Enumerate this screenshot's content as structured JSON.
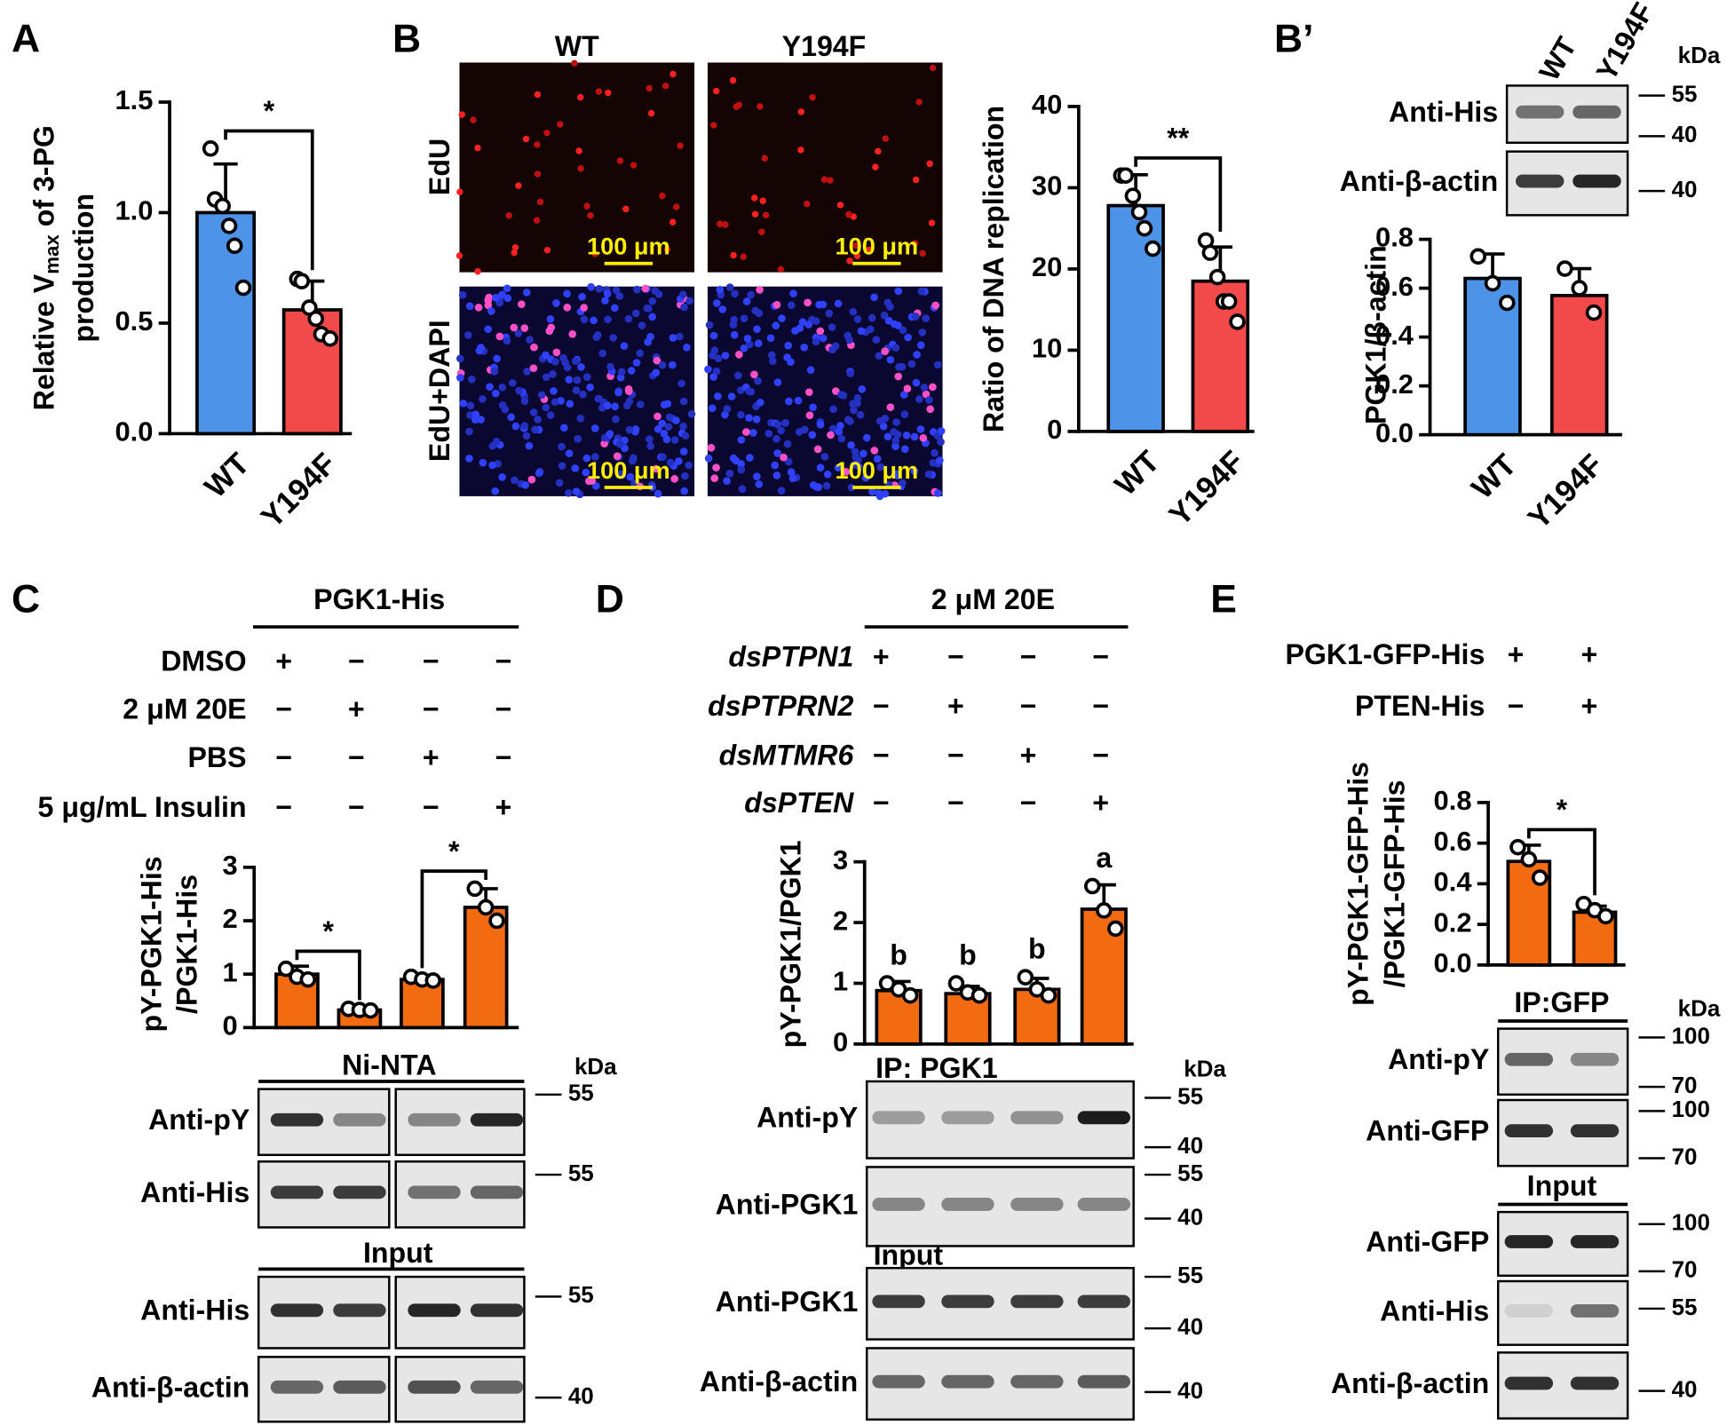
{
  "panel_labels": [
    "A",
    "B",
    "B’",
    "C",
    "D",
    "E"
  ],
  "chart_data": [
    {
      "type": "bar",
      "ylabel": [
        [
          {
            "t": "Relative V"
          },
          {
            "t": "max",
            "sub": true
          },
          {
            "t": " of 3-PG"
          }
        ],
        [
          {
            "t": "production"
          }
        ]
      ],
      "categories": [
        "WT",
        "Y194F"
      ],
      "values": [
        1.0,
        0.56
      ],
      "errors": [
        0.22,
        0.13
      ],
      "colors": [
        "#4d94e8",
        "#f24a4a"
      ],
      "points": [
        [
          1.29,
          1.06,
          1.03,
          0.94,
          0.85,
          0.66
        ],
        [
          0.7,
          0.69,
          0.57,
          0.52,
          0.45,
          0.43
        ]
      ],
      "ylim": [
        0,
        1.5
      ],
      "yticks": [
        {
          "value": 0,
          "label": "0.0"
        },
        {
          "value": 0.5,
          "label": "0.5"
        },
        {
          "value": 1,
          "label": "1.0"
        },
        {
          "value": 1.5,
          "label": "1.5"
        }
      ],
      "significance": [
        {
          "pair": [
            0,
            1
          ],
          "label": "*"
        }
      ]
    },
    {
      "type": "bar",
      "ylabel": [
        [
          {
            "t": "Ratio of DNA replication"
          }
        ]
      ],
      "categories": [
        "WT",
        "Y194F"
      ],
      "values": [
        27.8,
        18.5
      ],
      "errors": [
        3.8,
        4.2
      ],
      "colors": [
        "#4d94e8",
        "#f24a4a"
      ],
      "points": [
        [
          31.5,
          31.5,
          29,
          27,
          25,
          22.5
        ],
        [
          23.5,
          22,
          19,
          16,
          16,
          13.5
        ]
      ],
      "ylim": [
        0,
        40
      ],
      "yticks": [
        0,
        10,
        20,
        30,
        40
      ],
      "significance": [
        {
          "pair": [
            0,
            1
          ],
          "label": "**"
        }
      ]
    },
    {
      "type": "bar",
      "ylabel": [
        [
          {
            "t": "PGK1/β-actin"
          }
        ]
      ],
      "categories": [
        "WT",
        "Y194F"
      ],
      "values": [
        0.64,
        0.57
      ],
      "errors": [
        0.1,
        0.11
      ],
      "colors": [
        "#4d94e8",
        "#f24a4a"
      ],
      "points": [
        [
          0.73,
          0.62,
          0.54
        ],
        [
          0.68,
          0.6,
          0.5
        ]
      ],
      "ylim": [
        0,
        0.8
      ],
      "yticks": [
        {
          "value": 0,
          "label": "0.0"
        },
        {
          "value": 0.2,
          "label": "0.2"
        },
        {
          "value": 0.4,
          "label": "0.4"
        },
        {
          "value": 0.6,
          "label": "0.6"
        },
        {
          "value": 0.8,
          "label": "0.8"
        }
      ]
    },
    {
      "type": "bar",
      "ylabel": [
        [
          {
            "t": "pY-PGK1-His"
          }
        ],
        [
          {
            "t": "/PGK1-His"
          }
        ]
      ],
      "categories": [
        null,
        null,
        null,
        null
      ],
      "values": [
        1.0,
        0.33,
        0.9,
        2.25
      ],
      "errors": [
        0.15,
        0.05,
        0.08,
        0.35
      ],
      "colors": [
        "#f26b11",
        "#f26b11",
        "#f26b11",
        "#f26b11"
      ],
      "points": [
        [
          1.1,
          0.95,
          0.9
        ],
        [
          0.35,
          0.33,
          0.32
        ],
        [
          0.95,
          0.9,
          0.88
        ],
        [
          2.6,
          2.25,
          2.0
        ]
      ],
      "ylim": [
        0,
        3
      ],
      "yticks": [
        0,
        1,
        2,
        3
      ],
      "significance": [
        {
          "pair": [
            0,
            1
          ],
          "label": "*"
        },
        {
          "pair": [
            2,
            3
          ],
          "label": "*"
        }
      ]
    },
    {
      "type": "bar",
      "ylabel": [
        [
          {
            "t": "pY-PGK1/PGK1"
          }
        ]
      ],
      "categories": [
        null,
        null,
        null,
        null
      ],
      "values": [
        0.88,
        0.83,
        0.9,
        2.22
      ],
      "errors": [
        0.15,
        0.12,
        0.18,
        0.4
      ],
      "colors": [
        "#f26b11",
        "#f26b11",
        "#f26b11",
        "#f26b11"
      ],
      "points": [
        [
          1.0,
          0.9,
          0.8
        ],
        [
          1.0,
          0.85,
          0.8
        ],
        [
          1.1,
          0.9,
          0.8
        ],
        [
          2.6,
          2.2,
          1.9
        ]
      ],
      "ylim": [
        0,
        3
      ],
      "yticks": [
        0,
        1,
        2,
        3
      ],
      "letters": [
        "b",
        "b",
        "b",
        "a"
      ]
    },
    {
      "type": "bar",
      "ylabel": [
        [
          {
            "t": "pY-PGK1-GFP-His"
          }
        ],
        [
          {
            "t": "/PGK1-GFP-His"
          }
        ]
      ],
      "categories": [
        null,
        null
      ],
      "values": [
        0.51,
        0.26
      ],
      "errors": [
        0.08,
        0.03
      ],
      "colors": [
        "#f26b11",
        "#f26b11"
      ],
      "points": [
        [
          0.58,
          0.52,
          0.43
        ],
        [
          0.3,
          0.27,
          0.24
        ]
      ],
      "ylim": [
        0,
        0.8
      ],
      "yticks": [
        {
          "value": 0,
          "label": "0.0"
        },
        {
          "value": 0.2,
          "label": "0.2"
        },
        {
          "value": 0.4,
          "label": "0.4"
        },
        {
          "value": 0.6,
          "label": "0.6"
        },
        {
          "value": 0.8,
          "label": "0.8"
        }
      ],
      "significance": [
        {
          "pair": [
            0,
            1
          ],
          "label": "*"
        }
      ]
    }
  ],
  "microscopy": {
    "columns": [
      "WT",
      "Y194F"
    ],
    "rows": [
      "EdU",
      "EdU+DAPI"
    ],
    "scale_bar": "100 μm"
  },
  "conditions": {
    "c": {
      "header": "PGK1-His",
      "rows": [
        {
          "label": "DMSO",
          "signs": [
            "+",
            "−",
            "−",
            "−"
          ]
        },
        {
          "label": "2 μM 20E",
          "signs": [
            "−",
            "+",
            "−",
            "−"
          ]
        },
        {
          "label": "PBS",
          "signs": [
            "−",
            "−",
            "+",
            "−"
          ]
        },
        {
          "label": "5 μg/mL Insulin",
          "signs": [
            "−",
            "−",
            "−",
            "+"
          ]
        }
      ]
    },
    "d": {
      "header": "2 μM 20E",
      "italic": true,
      "rows": [
        {
          "label": "dsPTPN1",
          "signs": [
            "+",
            "−",
            "−",
            "−"
          ]
        },
        {
          "label": "dsPTPRN2",
          "signs": [
            "−",
            "+",
            "−",
            "−"
          ]
        },
        {
          "label": "dsMTMR6",
          "signs": [
            "−",
            "−",
            "+",
            "−"
          ]
        },
        {
          "label": "dsPTEN",
          "signs": [
            "−",
            "−",
            "−",
            "+"
          ]
        }
      ]
    },
    "e": {
      "rows": [
        {
          "label": "PGK1-GFP-His",
          "signs": [
            "+",
            "+"
          ]
        },
        {
          "label": "PTEN-His",
          "signs": [
            "−",
            "+"
          ]
        }
      ]
    }
  },
  "blots": {
    "b_prime": {
      "lanes": [
        "WT",
        "Y194F"
      ],
      "kda": "kDa",
      "groups": [
        {
          "rows": [
            {
              "label": "Anti-His",
              "markers": [
                "55",
                "40"
              ]
            },
            {
              "label": "Anti-β-actin",
              "markers": [
                "40"
              ]
            }
          ]
        }
      ]
    },
    "c": {
      "kda": "kDa",
      "groups": [
        {
          "title": "Ni-NTA",
          "rows": [
            {
              "label": "Anti-pY",
              "markers": [
                "55"
              ]
            },
            {
              "label": "Anti-His",
              "markers": [
                "55"
              ]
            }
          ]
        },
        {
          "title": "Input",
          "rows": [
            {
              "label": "Anti-His",
              "markers": [
                "55"
              ]
            },
            {
              "label": "Anti-β-actin",
              "markers": [
                "40"
              ]
            }
          ]
        }
      ]
    },
    "d": {
      "kda": "kDa",
      "groups": [
        {
          "title": "IP: PGK1",
          "rows": [
            {
              "label": "Anti-pY",
              "markers": [
                "55",
                "40"
              ]
            },
            {
              "label": "Anti-PGK1",
              "markers": [
                "55",
                "40"
              ]
            }
          ]
        },
        {
          "title": "Input",
          "rows": [
            {
              "label": "Anti-PGK1",
              "markers": [
                "55",
                "40"
              ]
            },
            {
              "label": "Anti-β-actin",
              "markers": [
                "40"
              ]
            }
          ]
        }
      ]
    },
    "e": {
      "kda": "kDa",
      "groups": [
        {
          "title": "IP:GFP",
          "rows": [
            {
              "label": "Anti-pY",
              "markers": [
                "100",
                "70"
              ]
            },
            {
              "label": "Anti-GFP",
              "markers": [
                "100",
                "70"
              ]
            }
          ]
        },
        {
          "title": "Input",
          "rows": [
            {
              "label": "Anti-GFP",
              "markers": [
                "100",
                "70"
              ]
            },
            {
              "label": "Anti-His",
              "markers": [
                "55"
              ]
            },
            {
              "label": "Anti-β-actin",
              "markers": [
                "40"
              ]
            }
          ]
        }
      ]
    }
  }
}
